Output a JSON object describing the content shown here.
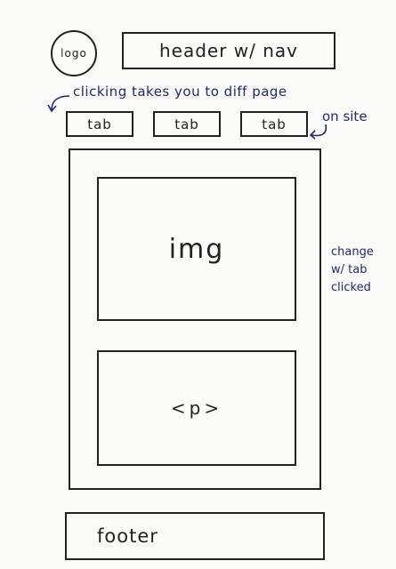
{
  "logo": {
    "label": "logo"
  },
  "header": {
    "label": "header w/ nav"
  },
  "tabs": [
    {
      "label": "tab"
    },
    {
      "label": "tab"
    },
    {
      "label": "tab"
    }
  ],
  "annotations": {
    "tab_note_line1": "clicking takes you to diff page",
    "tab_note_line2": "on site",
    "content_note": [
      "change",
      "w/ tab",
      "clicked"
    ]
  },
  "content": {
    "image_label": "img",
    "paragraph_label": "<p>"
  },
  "footer": {
    "label": "footer"
  },
  "colors": {
    "ink": "#222222",
    "annotation_ink": "#1f2a6b",
    "paper": "#fbfbfa"
  }
}
